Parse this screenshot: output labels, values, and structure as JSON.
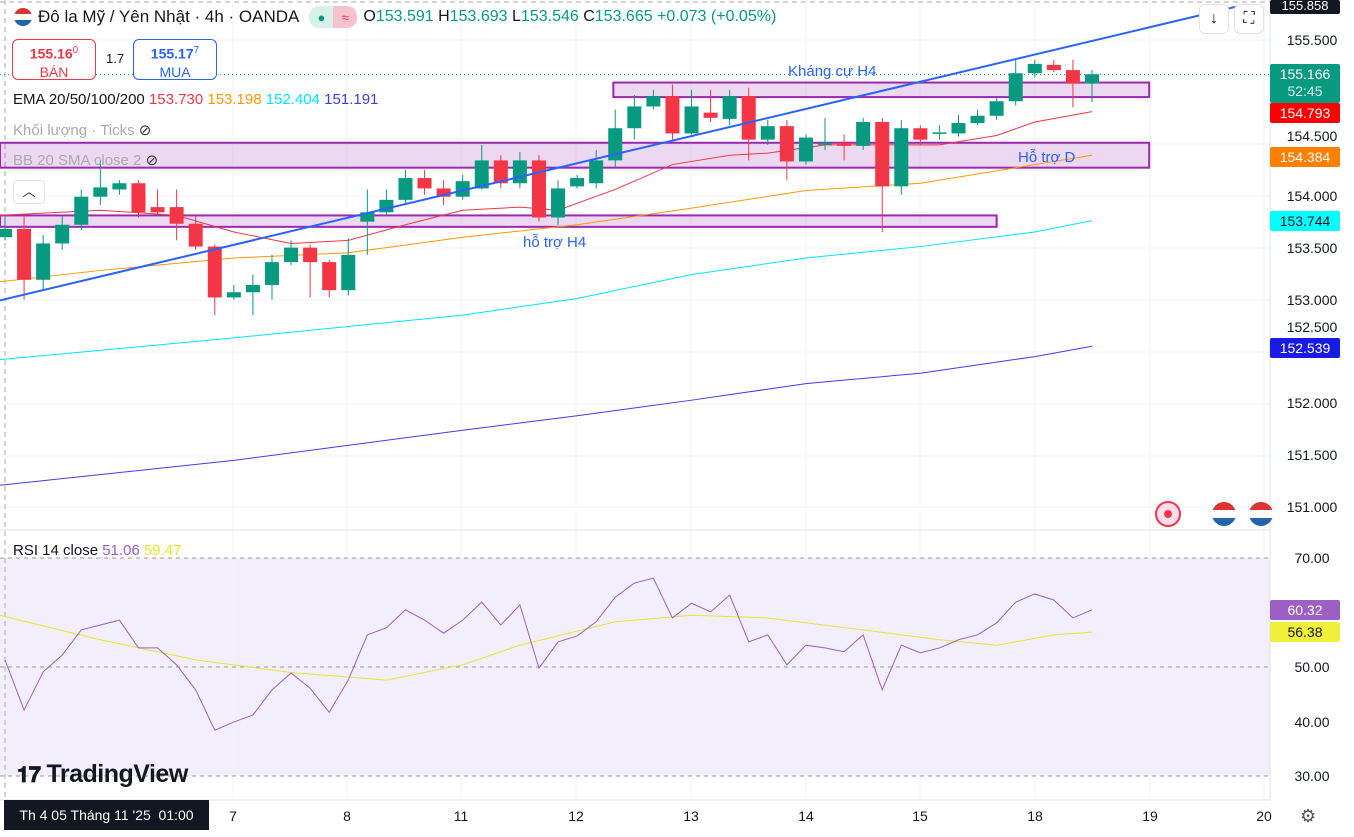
{
  "header": {
    "symbol": "Đô la Mỹ / Yên Nhật · 4h · OANDA",
    "o_label": "O",
    "o": "153.591",
    "h_label": "H",
    "h": "153.693",
    "l_label": "L",
    "l": "153.546",
    "c_label": "C",
    "c": "153.665",
    "change": "+0.073 (+0.05%)"
  },
  "trade": {
    "sell_price": "155.16",
    "sell_sup": "0",
    "sell_label": "BÁN",
    "spread": "1.7",
    "buy_price": "155.17",
    "buy_sup": "7",
    "buy_label": "MUA"
  },
  "legends": {
    "ema_label": "EMA 20/50/100/200",
    "ema20": "153.730",
    "ema50": "153.198",
    "ema100": "152.404",
    "ema200": "151.191",
    "volume": "Khối lượng · Ticks",
    "bb": "BB 20 SMA close 2",
    "rsi_label": "RSI 14 close",
    "rsi": "51.06",
    "rsi_ma": "59.47"
  },
  "colors": {
    "up": "#089981",
    "down": "#f23645",
    "ema20": "#f23645",
    "ema50": "#ff9800",
    "ema100": "#00e5ff",
    "ema200": "#3d3df5",
    "zone": "#9c27b0",
    "trend": "#2962ff",
    "rsi": "#9c5fc4",
    "rsi_ma": "#e6e62e"
  },
  "price_axis": [
    "155.500",
    "154.500",
    "154.000",
    "153.500",
    "153.000",
    "152.500",
    "152.000",
    "151.500",
    "151.000"
  ],
  "price_axis_top": "155.858",
  "price_tags": {
    "last": "155.166",
    "countdown": "52:45",
    "ema20": "154.793",
    "ema50": "154.384",
    "ema100": "153.744",
    "ema200": "152.539"
  },
  "rsi_axis": [
    "70.00",
    "50.00",
    "40.00",
    "30.00"
  ],
  "rsi_tags": {
    "rsi": "60.32",
    "ma": "56.38"
  },
  "time_axis": {
    "cursor": "Th 4 05 Tháng 11 '25  01:00",
    "labels": [
      "7",
      "8",
      "11",
      "12",
      "13",
      "14",
      "15",
      "18",
      "19",
      "20"
    ]
  },
  "zone_labels": {
    "resistance": "Kháng cự H4",
    "support_d": "Hỗ trợ D",
    "support_h4": "hỗ trợ H4"
  },
  "logo": "TradingView",
  "chart_data": {
    "type": "candlestick",
    "price_range": [
      150.95,
      155.9
    ],
    "candles": [
      [
        153.6,
        153.79,
        153.57,
        153.68
      ],
      [
        153.68,
        153.81,
        153.0,
        153.19
      ],
      [
        153.19,
        153.62,
        153.09,
        153.54
      ],
      [
        153.54,
        153.81,
        153.48,
        153.72
      ],
      [
        153.72,
        154.06,
        153.67,
        153.99
      ],
      [
        153.99,
        154.34,
        153.91,
        154.08
      ],
      [
        154.06,
        154.15,
        154.01,
        154.12
      ],
      [
        154.12,
        154.15,
        153.79,
        153.84
      ],
      [
        153.89,
        154.06,
        153.81,
        153.84
      ],
      [
        153.89,
        154.06,
        153.57,
        153.73
      ],
      [
        153.73,
        153.81,
        153.48,
        153.51
      ],
      [
        153.51,
        153.53,
        152.85,
        153.02
      ],
      [
        153.02,
        153.14,
        153.0,
        153.07
      ],
      [
        153.07,
        153.24,
        152.85,
        153.14
      ],
      [
        153.14,
        153.43,
        153.0,
        153.36
      ],
      [
        153.36,
        153.57,
        153.33,
        153.5
      ],
      [
        153.5,
        153.53,
        153.02,
        153.36
      ],
      [
        153.36,
        153.38,
        153.02,
        153.09
      ],
      [
        153.09,
        153.59,
        153.04,
        153.43
      ],
      [
        153.75,
        154.06,
        153.43,
        153.84
      ],
      [
        153.84,
        154.06,
        153.81,
        153.96
      ],
      [
        153.96,
        154.25,
        153.91,
        154.17
      ],
      [
        154.17,
        154.25,
        154.01,
        154.07
      ],
      [
        154.07,
        154.15,
        153.91,
        153.99
      ],
      [
        153.99,
        154.2,
        153.96,
        154.14
      ],
      [
        154.07,
        154.49,
        154.06,
        154.34
      ],
      [
        154.34,
        154.39,
        154.07,
        154.12
      ],
      [
        154.12,
        154.42,
        154.07,
        154.34
      ],
      [
        154.34,
        154.39,
        153.75,
        153.79
      ],
      [
        153.79,
        154.15,
        153.72,
        154.07
      ],
      [
        154.09,
        154.2,
        154.07,
        154.17
      ],
      [
        154.12,
        154.44,
        154.07,
        154.34
      ],
      [
        154.34,
        154.83,
        154.27,
        154.65
      ],
      [
        154.65,
        154.97,
        154.54,
        154.86
      ],
      [
        154.86,
        155.02,
        154.83,
        154.96
      ],
      [
        154.96,
        155.07,
        154.54,
        154.6
      ],
      [
        154.6,
        155.02,
        154.59,
        154.86
      ],
      [
        154.8,
        155.02,
        154.71,
        154.75
      ],
      [
        154.74,
        155.02,
        154.68,
        154.96
      ],
      [
        154.96,
        155.04,
        154.34,
        154.54
      ],
      [
        154.54,
        154.73,
        154.49,
        154.67
      ],
      [
        154.67,
        154.73,
        154.15,
        154.33
      ],
      [
        154.33,
        154.59,
        154.3,
        154.56
      ],
      [
        154.49,
        154.75,
        154.44,
        154.51
      ],
      [
        154.51,
        154.59,
        154.34,
        154.48
      ],
      [
        154.48,
        154.75,
        154.44,
        154.71
      ],
      [
        154.71,
        154.75,
        153.65,
        154.09
      ],
      [
        154.09,
        154.73,
        154.01,
        154.65
      ],
      [
        154.65,
        154.68,
        154.49,
        154.54
      ],
      [
        154.6,
        154.68,
        154.54,
        154.61
      ],
      [
        154.6,
        154.78,
        154.57,
        154.7
      ],
      [
        154.7,
        154.83,
        154.68,
        154.77
      ],
      [
        154.77,
        154.94,
        154.73,
        154.91
      ],
      [
        154.91,
        155.31,
        154.87,
        155.18
      ],
      [
        155.18,
        155.31,
        155.14,
        155.27
      ],
      [
        155.26,
        155.31,
        155.19,
        155.21
      ],
      [
        155.21,
        155.31,
        154.85,
        155.08
      ],
      [
        155.08,
        155.21,
        154.9,
        155.17
      ]
    ],
    "ema20": [
      [
        -0.3,
        153.81
      ],
      [
        5,
        153.86
      ],
      [
        9,
        153.81
      ],
      [
        12,
        153.65
      ],
      [
        15,
        153.54
      ],
      [
        18,
        153.57
      ],
      [
        21,
        153.72
      ],
      [
        24,
        153.86
      ],
      [
        27,
        153.89
      ],
      [
        29,
        153.86
      ],
      [
        32,
        154.06
      ],
      [
        35,
        154.3
      ],
      [
        38,
        154.39
      ],
      [
        40,
        154.41
      ],
      [
        43,
        154.49
      ],
      [
        46,
        154.49
      ],
      [
        49,
        154.49
      ],
      [
        52,
        154.58
      ],
      [
        54,
        154.71
      ],
      [
        57,
        154.81
      ]
    ],
    "ema50": [
      [
        -0.3,
        153.17
      ],
      [
        5,
        153.28
      ],
      [
        12,
        153.4
      ],
      [
        18,
        153.45
      ],
      [
        24,
        153.6
      ],
      [
        30,
        153.72
      ],
      [
        36,
        153.88
      ],
      [
        42,
        154.05
      ],
      [
        48,
        154.12
      ],
      [
        54,
        154.3
      ],
      [
        57,
        154.39
      ]
    ],
    "ema100": [
      [
        -0.3,
        152.42
      ],
      [
        12,
        152.63
      ],
      [
        24,
        152.85
      ],
      [
        30,
        153.01
      ],
      [
        36,
        153.24
      ],
      [
        42,
        153.4
      ],
      [
        48,
        153.51
      ],
      [
        54,
        153.65
      ],
      [
        57,
        153.76
      ]
    ],
    "ema200": [
      [
        -0.3,
        151.21
      ],
      [
        12,
        151.45
      ],
      [
        24,
        151.74
      ],
      [
        30,
        151.88
      ],
      [
        36,
        152.03
      ],
      [
        42,
        152.19
      ],
      [
        48,
        152.29
      ],
      [
        54,
        152.45
      ],
      [
        57,
        152.55
      ]
    ],
    "zones": [
      {
        "from": 31.9,
        "to": 60,
        "top": 155.09,
        "bottom": 154.95
      },
      {
        "from": -1,
        "to": 60,
        "top": 154.51,
        "bottom": 154.27
      },
      {
        "from": -1,
        "to": 52,
        "top": 153.81,
        "bottom": 153.7
      }
    ],
    "trendline": [
      [
        -0.3,
        152.99
      ],
      [
        65,
        155.84
      ]
    ],
    "rsi": [
      51.3,
      42.1,
      49.1,
      52.2,
      56.8,
      57.7,
      58.6,
      53.5,
      53.5,
      50.4,
      45.8,
      38.4,
      39.9,
      41.2,
      45.8,
      48.9,
      46.1,
      41.7,
      47.6,
      55.9,
      57.2,
      60.5,
      58.6,
      56.2,
      58.6,
      61.9,
      57.7,
      61.4,
      49.8,
      54.6,
      55.7,
      58.3,
      62.8,
      65.4,
      66.3,
      59.0,
      61.7,
      60.1,
      63.2,
      54.6,
      55.9,
      50.4,
      54.0,
      53.5,
      52.8,
      55.9,
      45.8,
      54.0,
      52.6,
      53.5,
      55.0,
      55.9,
      58.1,
      61.9,
      63.4,
      62.3,
      59.0,
      60.5
    ],
    "rsi_ma": [
      [
        -0.3,
        59.5
      ],
      [
        5,
        55
      ],
      [
        10,
        51.3
      ],
      [
        15,
        49
      ],
      [
        20,
        47.6
      ],
      [
        24,
        50.4
      ],
      [
        27,
        54
      ],
      [
        32,
        58.3
      ],
      [
        36,
        59.5
      ],
      [
        40,
        59
      ],
      [
        45,
        56.8
      ],
      [
        49,
        55
      ],
      [
        52,
        54
      ],
      [
        55,
        55.9
      ],
      [
        57,
        56.4
      ]
    ],
    "rsi_range": [
      30,
      70
    ]
  }
}
